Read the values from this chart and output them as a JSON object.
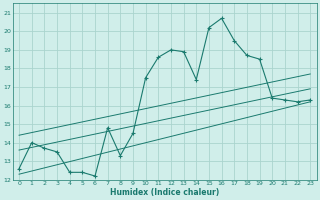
{
  "xlabel": "Humidex (Indice chaleur)",
  "xlim": [
    -0.5,
    23.5
  ],
  "ylim": [
    12,
    21.5
  ],
  "yticks": [
    12,
    13,
    14,
    15,
    16,
    17,
    18,
    19,
    20,
    21
  ],
  "xticks": [
    0,
    1,
    2,
    3,
    4,
    5,
    6,
    7,
    8,
    9,
    10,
    11,
    12,
    13,
    14,
    15,
    16,
    17,
    18,
    19,
    20,
    21,
    22,
    23
  ],
  "bg_color": "#d0eeea",
  "grid_color": "#aad4ce",
  "line_color": "#1a7a6e",
  "hours": [
    0,
    1,
    2,
    3,
    4,
    5,
    6,
    7,
    8,
    9,
    10,
    11,
    12,
    13,
    14,
    15,
    16,
    17,
    18,
    19,
    20,
    21,
    22,
    23
  ],
  "humidex": [
    12.6,
    14.0,
    13.7,
    13.5,
    12.4,
    12.4,
    12.2,
    14.8,
    13.3,
    14.5,
    17.5,
    18.6,
    19.0,
    18.9,
    17.4,
    20.2,
    20.7,
    19.5,
    18.7,
    18.5,
    16.4,
    16.3,
    16.2,
    16.3
  ],
  "reg_lines": [
    [
      [
        0,
        13.6
      ],
      [
        23,
        16.9
      ]
    ],
    [
      [
        0,
        14.4
      ],
      [
        23,
        17.7
      ]
    ],
    [
      [
        0,
        12.3
      ],
      [
        23,
        16.2
      ]
    ]
  ]
}
